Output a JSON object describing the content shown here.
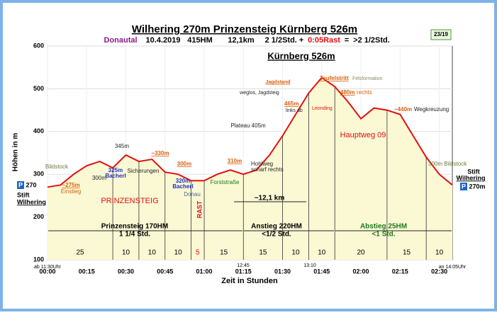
{
  "chart_data": {
    "type": "area",
    "title": "Wilhering 270m   Prinzensteig   Kürnberg 526m",
    "subtitle": {
      "region": "Donautal",
      "date": "10.4.2019",
      "ascent": "415HM",
      "distance": "12,1km",
      "walk": "2 1/2Std. +",
      "rest": "0:05Rast",
      "equals": "=",
      "total": ">2 1/2Std."
    },
    "badge": "23/19",
    "peak_label": "Kürnberg 526m",
    "y_label": "Höhen in m",
    "x_label": "Zeit in Stunden",
    "x": [
      0,
      5,
      10,
      15,
      20,
      25,
      30,
      35,
      40,
      45,
      50,
      55,
      60,
      65,
      70,
      75,
      80,
      85,
      90,
      95,
      100,
      105,
      110,
      115,
      120,
      125,
      130,
      135,
      140,
      145,
      150,
      155
    ],
    "series": [
      {
        "name": "Höhe",
        "color": "#e01010",
        "fill": "#fbf8d4",
        "values": [
          270,
          275,
          300,
          320,
          330,
          315,
          345,
          330,
          335,
          305,
          300,
          285,
          285,
          300,
          310,
          300,
          310,
          345,
          390,
          440,
          490,
          526,
          505,
          470,
          430,
          455,
          450,
          440,
          390,
          340,
          300,
          275
        ]
      }
    ],
    "xlim": [
      0,
      155
    ],
    "ylim": [
      100,
      600
    ],
    "yticks": [
      100,
      200,
      300,
      400,
      500,
      600
    ],
    "xticks": [
      {
        "value": 0,
        "label": "00:00"
      },
      {
        "value": 15,
        "label": "00:15"
      },
      {
        "value": 30,
        "label": "00:30"
      },
      {
        "value": 45,
        "label": "00:45"
      },
      {
        "value": 60,
        "label": "01:00"
      },
      {
        "value": 75,
        "label": "01:15"
      },
      {
        "value": 90,
        "label": "01:30"
      },
      {
        "value": 105,
        "label": "01:45"
      },
      {
        "value": 120,
        "label": "02:00"
      },
      {
        "value": 135,
        "label": "02:15"
      },
      {
        "value": 150,
        "label": "02:30"
      }
    ],
    "grid": true,
    "segments": [
      25,
      10,
      10,
      10,
      5,
      15,
      15,
      10,
      10,
      20,
      15,
      10
    ],
    "sections": [
      [
        "Prinzensteig 170HM",
        "1 1/4 Std."
      ],
      [
        "Anstieg 220HM",
        "<1/2 Std."
      ],
      [
        "Abstieg 25HM",
        "<1 Std."
      ]
    ],
    "distance_label": "~12,1 km",
    "start": {
      "parking": "P",
      "height": "270",
      "name1": "Stift",
      "name2": "Wilhering",
      "time": "ab 11:30Uhr"
    },
    "end": {
      "parking": "P",
      "height": "270m",
      "name1": "Stift",
      "name2": "Wilhering",
      "time": "an 14:05Uhr"
    },
    "annotations": [
      "Bildstock",
      "~275m",
      "Einstieg",
      "300m",
      "345m",
      "325m",
      "Bacherl",
      "Sicherungen",
      "~330m",
      "300m",
      "320m",
      "Bacherl",
      "Donau",
      "PRINZENSTEIG",
      "RAST",
      "Forststraße",
      "310m",
      "Hohlweg",
      "scharf rechts",
      "Plateau 405m",
      "weglos, Jagdsteig",
      "Jagdstand",
      "465m",
      "links ab",
      "Teufelstritt",
      "Felsformation",
      "480m",
      "rechts",
      "Leonding",
      "~440m",
      "Wegkreuzung",
      "Hauptweg 09",
      "300m Bildstock",
      "12:45",
      "13:10"
    ]
  }
}
